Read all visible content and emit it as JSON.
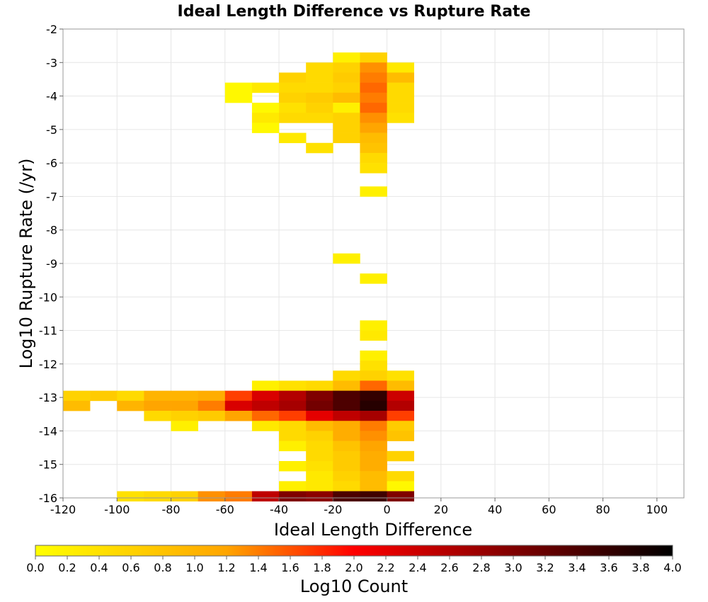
{
  "chart_data": {
    "type": "heatmap",
    "title": "Ideal Length Difference vs Rupture Rate",
    "xlabel": "Ideal Length Difference",
    "ylabel": "Log10 Rupture Rate (/yr)",
    "xlim": [
      -120,
      110
    ],
    "ylim": [
      -16,
      -2
    ],
    "x_ticks": [
      -120,
      -100,
      -80,
      -60,
      -40,
      -20,
      0,
      20,
      40,
      60,
      80,
      100
    ],
    "y_ticks": [
      -2,
      -3,
      -4,
      -5,
      -6,
      -7,
      -8,
      -9,
      -10,
      -11,
      -12,
      -13,
      -14,
      -15,
      -16
    ],
    "grid": true,
    "bin_width": 10,
    "bin_height": 0.3,
    "colorbar": {
      "label": "Log10 Count",
      "range": [
        0.0,
        4.0
      ],
      "ticks": [
        "0.0",
        "0.2",
        "0.4",
        "0.6",
        "0.8",
        "1.0",
        "1.2",
        "1.4",
        "1.6",
        "1.8",
        "2.0",
        "2.2",
        "2.4",
        "2.6",
        "2.8",
        "3.0",
        "3.2",
        "3.4",
        "3.6",
        "3.8",
        "4.0"
      ],
      "colors": [
        "#ffff00",
        "#ffa500",
        "#ff0000",
        "#000000"
      ],
      "placement": "bottom"
    },
    "cells": [
      {
        "x": -20,
        "y": -2.85,
        "v": 0.2
      },
      {
        "x": -10,
        "y": -2.85,
        "v": 0.6
      },
      {
        "x": -30,
        "y": -3.15,
        "v": 0.5
      },
      {
        "x": -20,
        "y": -3.15,
        "v": 0.6
      },
      {
        "x": -10,
        "y": -3.15,
        "v": 1.3
      },
      {
        "x": 0,
        "y": -3.15,
        "v": 0.3
      },
      {
        "x": -40,
        "y": -3.45,
        "v": 0.6
      },
      {
        "x": -30,
        "y": -3.45,
        "v": 0.5
      },
      {
        "x": -20,
        "y": -3.45,
        "v": 0.7
      },
      {
        "x": -10,
        "y": -3.45,
        "v": 1.4
      },
      {
        "x": 0,
        "y": -3.45,
        "v": 0.9
      },
      {
        "x": -60,
        "y": -3.75,
        "v": 0.1
      },
      {
        "x": -50,
        "y": -3.75,
        "v": 0.3
      },
      {
        "x": -40,
        "y": -3.75,
        "v": 0.5
      },
      {
        "x": -30,
        "y": -3.75,
        "v": 0.5
      },
      {
        "x": -20,
        "y": -3.75,
        "v": 0.6
      },
      {
        "x": -10,
        "y": -3.75,
        "v": 1.5
      },
      {
        "x": 0,
        "y": -3.75,
        "v": 0.5
      },
      {
        "x": -60,
        "y": -4.05,
        "v": 0.1
      },
      {
        "x": -40,
        "y": -4.05,
        "v": 0.6
      },
      {
        "x": -30,
        "y": -4.05,
        "v": 0.7
      },
      {
        "x": -20,
        "y": -4.05,
        "v": 0.9
      },
      {
        "x": -10,
        "y": -4.05,
        "v": 1.4
      },
      {
        "x": 0,
        "y": -4.05,
        "v": 0.5
      },
      {
        "x": -50,
        "y": -4.35,
        "v": 0.1
      },
      {
        "x": -40,
        "y": -4.35,
        "v": 0.4
      },
      {
        "x": -30,
        "y": -4.35,
        "v": 0.6
      },
      {
        "x": -20,
        "y": -4.35,
        "v": 0.2
      },
      {
        "x": -10,
        "y": -4.35,
        "v": 1.5
      },
      {
        "x": 0,
        "y": -4.35,
        "v": 0.5
      },
      {
        "x": -50,
        "y": -4.65,
        "v": 0.3
      },
      {
        "x": -40,
        "y": -4.65,
        "v": 0.5
      },
      {
        "x": -30,
        "y": -4.65,
        "v": 0.5
      },
      {
        "x": -20,
        "y": -4.65,
        "v": 0.6
      },
      {
        "x": -10,
        "y": -4.65,
        "v": 1.3
      },
      {
        "x": 0,
        "y": -4.65,
        "v": 0.4
      },
      {
        "x": -50,
        "y": -4.95,
        "v": 0.1
      },
      {
        "x": -20,
        "y": -4.95,
        "v": 0.6
      },
      {
        "x": -10,
        "y": -4.95,
        "v": 1.2
      },
      {
        "x": -40,
        "y": -5.25,
        "v": 0.3
      },
      {
        "x": -20,
        "y": -5.25,
        "v": 0.6
      },
      {
        "x": -10,
        "y": -5.25,
        "v": 0.9
      },
      {
        "x": -30,
        "y": -5.55,
        "v": 0.4
      },
      {
        "x": -10,
        "y": -5.55,
        "v": 0.8
      },
      {
        "x": -10,
        "y": -5.85,
        "v": 0.5
      },
      {
        "x": -10,
        "y": -6.15,
        "v": 0.4
      },
      {
        "x": -10,
        "y": -6.85,
        "v": 0.2
      },
      {
        "x": -20,
        "y": -8.85,
        "v": 0.2
      },
      {
        "x": -10,
        "y": -9.45,
        "v": 0.2
      },
      {
        "x": -10,
        "y": -10.85,
        "v": 0.2
      },
      {
        "x": -10,
        "y": -11.15,
        "v": 0.3
      },
      {
        "x": -10,
        "y": -11.75,
        "v": 0.2
      },
      {
        "x": -10,
        "y": -12.05,
        "v": 0.4
      },
      {
        "x": -20,
        "y": -12.35,
        "v": 0.5
      },
      {
        "x": -10,
        "y": -12.35,
        "v": 0.6
      },
      {
        "x": 0,
        "y": -12.35,
        "v": 0.4
      },
      {
        "x": -50,
        "y": -12.65,
        "v": 0.2
      },
      {
        "x": -40,
        "y": -12.65,
        "v": 0.4
      },
      {
        "x": -30,
        "y": -12.65,
        "v": 0.5
      },
      {
        "x": -20,
        "y": -12.65,
        "v": 0.9
      },
      {
        "x": -10,
        "y": -12.65,
        "v": 1.5
      },
      {
        "x": 0,
        "y": -12.65,
        "v": 0.9
      },
      {
        "x": -120,
        "y": -12.95,
        "v": 0.6
      },
      {
        "x": -110,
        "y": -12.95,
        "v": 0.7
      },
      {
        "x": -100,
        "y": -12.95,
        "v": 0.5
      },
      {
        "x": -90,
        "y": -12.95,
        "v": 1.0
      },
      {
        "x": -80,
        "y": -12.95,
        "v": 1.0
      },
      {
        "x": -70,
        "y": -12.95,
        "v": 1.1
      },
      {
        "x": -60,
        "y": -12.95,
        "v": 1.7
      },
      {
        "x": -50,
        "y": -12.95,
        "v": 2.3
      },
      {
        "x": -40,
        "y": -12.95,
        "v": 2.6
      },
      {
        "x": -30,
        "y": -12.95,
        "v": 3.0
      },
      {
        "x": -20,
        "y": -12.95,
        "v": 3.4
      },
      {
        "x": -10,
        "y": -12.95,
        "v": 3.6
      },
      {
        "x": 0,
        "y": -12.95,
        "v": 2.4
      },
      {
        "x": -120,
        "y": -13.25,
        "v": 0.9
      },
      {
        "x": -100,
        "y": -13.25,
        "v": 1.0
      },
      {
        "x": -90,
        "y": -13.25,
        "v": 1.2
      },
      {
        "x": -80,
        "y": -13.25,
        "v": 1.2
      },
      {
        "x": -70,
        "y": -13.25,
        "v": 1.4
      },
      {
        "x": -60,
        "y": -13.25,
        "v": 2.3
      },
      {
        "x": -50,
        "y": -13.25,
        "v": 2.5
      },
      {
        "x": -40,
        "y": -13.25,
        "v": 2.7
      },
      {
        "x": -30,
        "y": -13.25,
        "v": 3.1
      },
      {
        "x": -20,
        "y": -13.25,
        "v": 3.4
      },
      {
        "x": -10,
        "y": -13.25,
        "v": 3.7
      },
      {
        "x": 0,
        "y": -13.25,
        "v": 2.6
      },
      {
        "x": -90,
        "y": -13.55,
        "v": 0.5
      },
      {
        "x": -80,
        "y": -13.55,
        "v": 0.6
      },
      {
        "x": -70,
        "y": -13.55,
        "v": 0.7
      },
      {
        "x": -60,
        "y": -13.55,
        "v": 1.2
      },
      {
        "x": -50,
        "y": -13.55,
        "v": 1.5
      },
      {
        "x": -40,
        "y": -13.55,
        "v": 1.7
      },
      {
        "x": -30,
        "y": -13.55,
        "v": 2.2
      },
      {
        "x": -20,
        "y": -13.55,
        "v": 2.5
      },
      {
        "x": -10,
        "y": -13.55,
        "v": 2.7
      },
      {
        "x": 0,
        "y": -13.55,
        "v": 1.7
      },
      {
        "x": -80,
        "y": -13.85,
        "v": 0.2
      },
      {
        "x": -50,
        "y": -13.85,
        "v": 0.3
      },
      {
        "x": -40,
        "y": -13.85,
        "v": 0.5
      },
      {
        "x": -30,
        "y": -13.85,
        "v": 0.9
      },
      {
        "x": -20,
        "y": -13.85,
        "v": 1.1
      },
      {
        "x": -10,
        "y": -13.85,
        "v": 1.4
      },
      {
        "x": 0,
        "y": -13.85,
        "v": 0.7
      },
      {
        "x": -40,
        "y": -14.15,
        "v": 0.5
      },
      {
        "x": -30,
        "y": -14.15,
        "v": 0.6
      },
      {
        "x": -20,
        "y": -14.15,
        "v": 1.1
      },
      {
        "x": -10,
        "y": -14.15,
        "v": 1.3
      },
      {
        "x": 0,
        "y": -14.15,
        "v": 0.8
      },
      {
        "x": -40,
        "y": -14.45,
        "v": 0.2
      },
      {
        "x": -30,
        "y": -14.45,
        "v": 0.5
      },
      {
        "x": -20,
        "y": -14.45,
        "v": 0.8
      },
      {
        "x": -10,
        "y": -14.45,
        "v": 1.2
      },
      {
        "x": -30,
        "y": -14.75,
        "v": 0.5
      },
      {
        "x": -20,
        "y": -14.75,
        "v": 0.7
      },
      {
        "x": -10,
        "y": -14.75,
        "v": 1.1
      },
      {
        "x": 0,
        "y": -14.75,
        "v": 0.6
      },
      {
        "x": -40,
        "y": -15.05,
        "v": 0.2
      },
      {
        "x": -30,
        "y": -15.05,
        "v": 0.4
      },
      {
        "x": -20,
        "y": -15.05,
        "v": 0.7
      },
      {
        "x": -10,
        "y": -15.05,
        "v": 1.1
      },
      {
        "x": -30,
        "y": -15.35,
        "v": 0.3
      },
      {
        "x": -20,
        "y": -15.35,
        "v": 0.6
      },
      {
        "x": -10,
        "y": -15.35,
        "v": 0.9
      },
      {
        "x": 0,
        "y": -15.35,
        "v": 0.5
      },
      {
        "x": -40,
        "y": -15.65,
        "v": 0.2
      },
      {
        "x": -30,
        "y": -15.65,
        "v": 0.3
      },
      {
        "x": -20,
        "y": -15.65,
        "v": 0.5
      },
      {
        "x": -10,
        "y": -15.65,
        "v": 0.9
      },
      {
        "x": 0,
        "y": -15.65,
        "v": 0.1
      },
      {
        "x": -30,
        "y": -15.95,
        "v": 2.9
      },
      {
        "x": -20,
        "y": -15.95,
        "v": 3.4
      },
      {
        "x": -10,
        "y": -15.95,
        "v": 3.5
      },
      {
        "x": 0,
        "y": -15.95,
        "v": 3.0
      },
      {
        "x": -100,
        "y": -15.95,
        "v": 0.4
      },
      {
        "x": -90,
        "y": -15.95,
        "v": 0.5
      },
      {
        "x": -80,
        "y": -15.95,
        "v": 0.6
      },
      {
        "x": -70,
        "y": -15.95,
        "v": 1.3
      },
      {
        "x": -60,
        "y": -15.95,
        "v": 1.4
      },
      {
        "x": -50,
        "y": -15.95,
        "v": 2.5
      },
      {
        "x": -40,
        "y": -15.95,
        "v": 3.0
      }
    ]
  }
}
